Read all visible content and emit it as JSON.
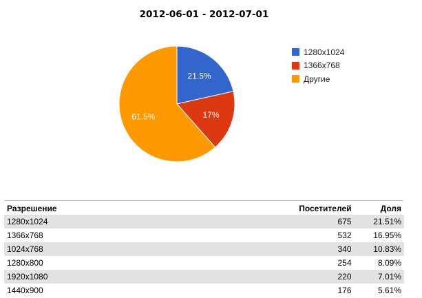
{
  "chart_data": {
    "type": "pie",
    "title": "2012-06-01 - 2012-07-01",
    "slices": [
      {
        "label": "1280x1024",
        "value": 21.5,
        "display": "21.5%",
        "color": "#3366cc"
      },
      {
        "label": "1366x768",
        "value": 17,
        "display": "17%",
        "color": "#dc3912"
      },
      {
        "label": "Другие",
        "value": 61.5,
        "display": "61.5%",
        "color": "#ff9900"
      }
    ],
    "legend_position": "right"
  },
  "table": {
    "headers": {
      "resolution": "Разрешение",
      "visitors": "Посетителей",
      "share": "Доля"
    },
    "rows": [
      {
        "resolution": "1280x1024",
        "visitors": "675",
        "share": "21.51%"
      },
      {
        "resolution": "1366x768",
        "visitors": "532",
        "share": "16.95%"
      },
      {
        "resolution": "1024x768",
        "visitors": "340",
        "share": "10.83%"
      },
      {
        "resolution": "1280x800",
        "visitors": "254",
        "share": "8.09%"
      },
      {
        "resolution": "1920x1080",
        "visitors": "220",
        "share": "7.01%"
      },
      {
        "resolution": "1440x900",
        "visitors": "176",
        "share": "5.61%"
      }
    ]
  }
}
